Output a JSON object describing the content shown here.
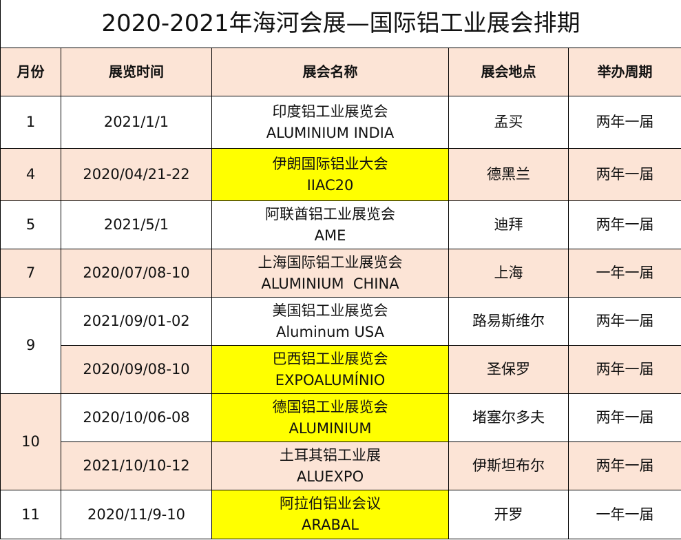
{
  "title": "2020-2021年海河会展—国际铝工业展会排期",
  "headers": [
    "月份",
    "展览时间",
    "展会名称",
    "展会地点",
    "举办周期"
  ],
  "colors": {
    "header_bg": "#fce4d6",
    "alt_row_bg": "#fce4d6",
    "highlight": "#ffff00"
  },
  "rows": [
    {
      "month": "1",
      "date": "2021/1/1",
      "name_cn": "印度铝工业展览会",
      "name_en": "ALUMINIUM INDIA",
      "place": "孟买",
      "cycle": "两年一届"
    },
    {
      "month": "4",
      "date": "2020/04/21-22",
      "name_cn": "伊朗国际铝业大会",
      "name_en": "IIAC20",
      "place": "德黑兰",
      "cycle": "两年一届"
    },
    {
      "month": "5",
      "date": "2021/5/1",
      "name_cn": "阿联酋铝工业展览会",
      "name_en": "AME",
      "place": "迪拜",
      "cycle": "两年一届"
    },
    {
      "month": "7",
      "date": "2020/07/08-10",
      "name_cn": "上海国际铝工业展览会",
      "name_en": "ALUMINIUM  CHINA",
      "place": "上海",
      "cycle": "一年一届"
    },
    {
      "month": "9",
      "date": "2021/09/01-02",
      "name_cn": "美国铝工业展览会",
      "name_en": "Aluminum USA",
      "place": "路易斯维尔",
      "cycle": "两年一届"
    },
    {
      "month": "",
      "date": "2020/09/08-10",
      "name_cn": "巴西铝工业展览会",
      "name_en": "EXPOALUMÍNIO",
      "place": "圣保罗",
      "cycle": "两年一届"
    },
    {
      "month": "10",
      "date": "2020/10/06-08",
      "name_cn": "德国铝工业展览会",
      "name_en": "ALUMINIUM",
      "place": "堵塞尔多夫",
      "cycle": "两年一届"
    },
    {
      "month": "",
      "date": "2021/10/10-12",
      "name_cn": "土耳其铝工业展",
      "name_en": "ALUEXPO",
      "place": "伊斯坦布尔",
      "cycle": "两年一届"
    },
    {
      "month": "11",
      "date": "2020/11/9-10",
      "name_cn": "阿拉伯铝业会议",
      "name_en": "ARABAL",
      "place": "开罗",
      "cycle": "一年一届"
    }
  ]
}
